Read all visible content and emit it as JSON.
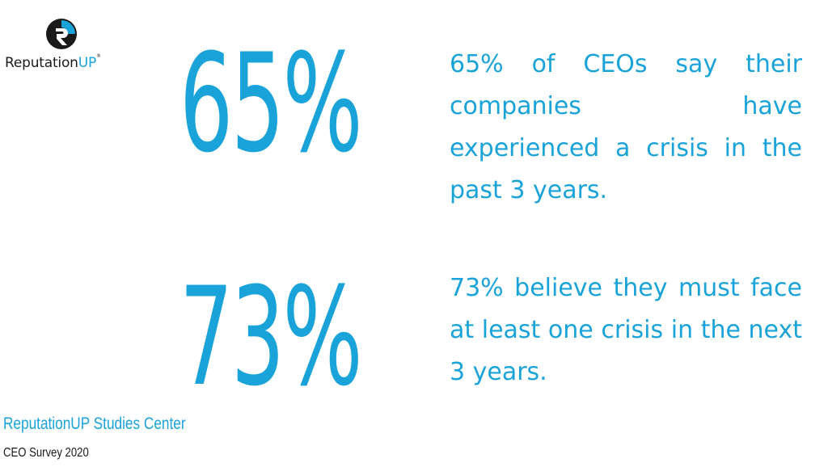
{
  "brand": {
    "name_main": "Reputation",
    "name_accent": "UP",
    "mark": "®",
    "accent_color": "#1aa3d9",
    "text_color": "#1a1a1a",
    "logo_icon": "reputationup-logo-icon"
  },
  "stats": [
    {
      "value": "65%",
      "description": "65% of CEOs say their companies have experienced a crisis in the past 3 years."
    },
    {
      "value": "73%",
      "description": "73% believe they must face at least one crisis in the next 3 years."
    }
  ],
  "source": {
    "title": "ReputationUP Studies Center",
    "subtitle": "CEO Survey 2020"
  }
}
